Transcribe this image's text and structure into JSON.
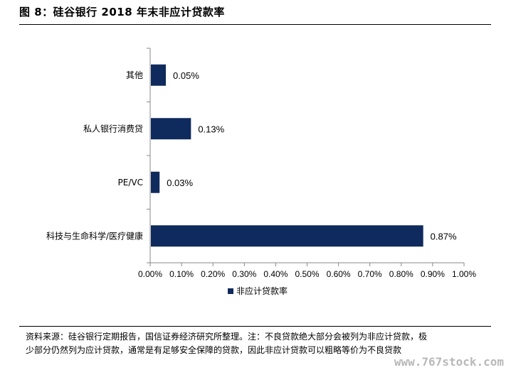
{
  "figure": {
    "title": "图 8：硅谷银行 2018 年末非应计贷款率",
    "source_line1": "资料来源：硅谷银行定期报告，国信证券经济研究所整理。注：不良贷款绝大部分会被列为非应计贷款，极",
    "source_line2": "少部分仍然列为应计贷款，通常是有足够安全保障的贷款，因此非应计贷款可以粗略等价为不良贷款",
    "watermark": "www.767stock.com"
  },
  "chart_data": {
    "type": "bar",
    "orientation": "horizontal",
    "categories": [
      "其他",
      "私人银行消费贷",
      "PE/VC",
      "科技与生命科学/医疗健康"
    ],
    "series": [
      {
        "name": "非应计贷款率",
        "values": [
          0.05,
          0.13,
          0.03,
          0.87
        ],
        "color": "#0f2a5c"
      }
    ],
    "data_labels": [
      "0.05%",
      "0.13%",
      "0.03%",
      "0.87%"
    ],
    "xlim": [
      0,
      1.0
    ],
    "xticks": [
      "0.00%",
      "0.10%",
      "0.20%",
      "0.30%",
      "0.40%",
      "0.50%",
      "0.60%",
      "0.70%",
      "0.80%",
      "0.90%",
      "1.00%"
    ],
    "grid": false,
    "legend_position": "bottom"
  }
}
